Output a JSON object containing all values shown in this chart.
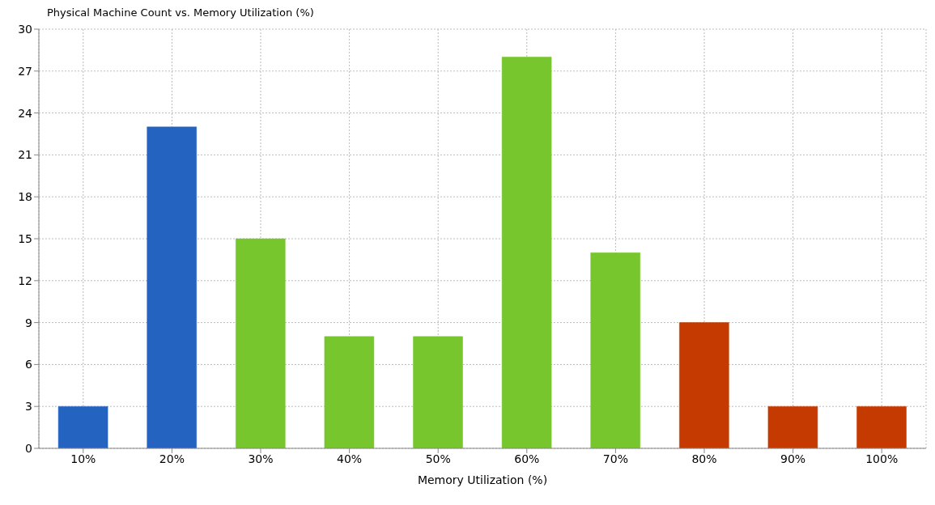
{
  "chart_data": {
    "type": "bar",
    "title": "Physical Machine Count  vs. Memory Utilization (%)",
    "xlabel": "Memory Utilization (%)",
    "categories": [
      "10%",
      "20%",
      "30%",
      "40%",
      "50%",
      "60%",
      "70%",
      "80%",
      "90%",
      "100%"
    ],
    "values": [
      3,
      23,
      15,
      8,
      8,
      28,
      14,
      9,
      3,
      3
    ],
    "colors": [
      "#2563c0",
      "#2563c0",
      "#77c62e",
      "#77c62e",
      "#77c62e",
      "#77c62e",
      "#77c62e",
      "#c43a00",
      "#c43a00",
      "#c43a00"
    ],
    "ylim": [
      0,
      30
    ],
    "yticks": [
      0,
      3,
      6,
      9,
      12,
      15,
      18,
      21,
      24,
      27,
      30
    ],
    "grid": true,
    "legend": false
  }
}
